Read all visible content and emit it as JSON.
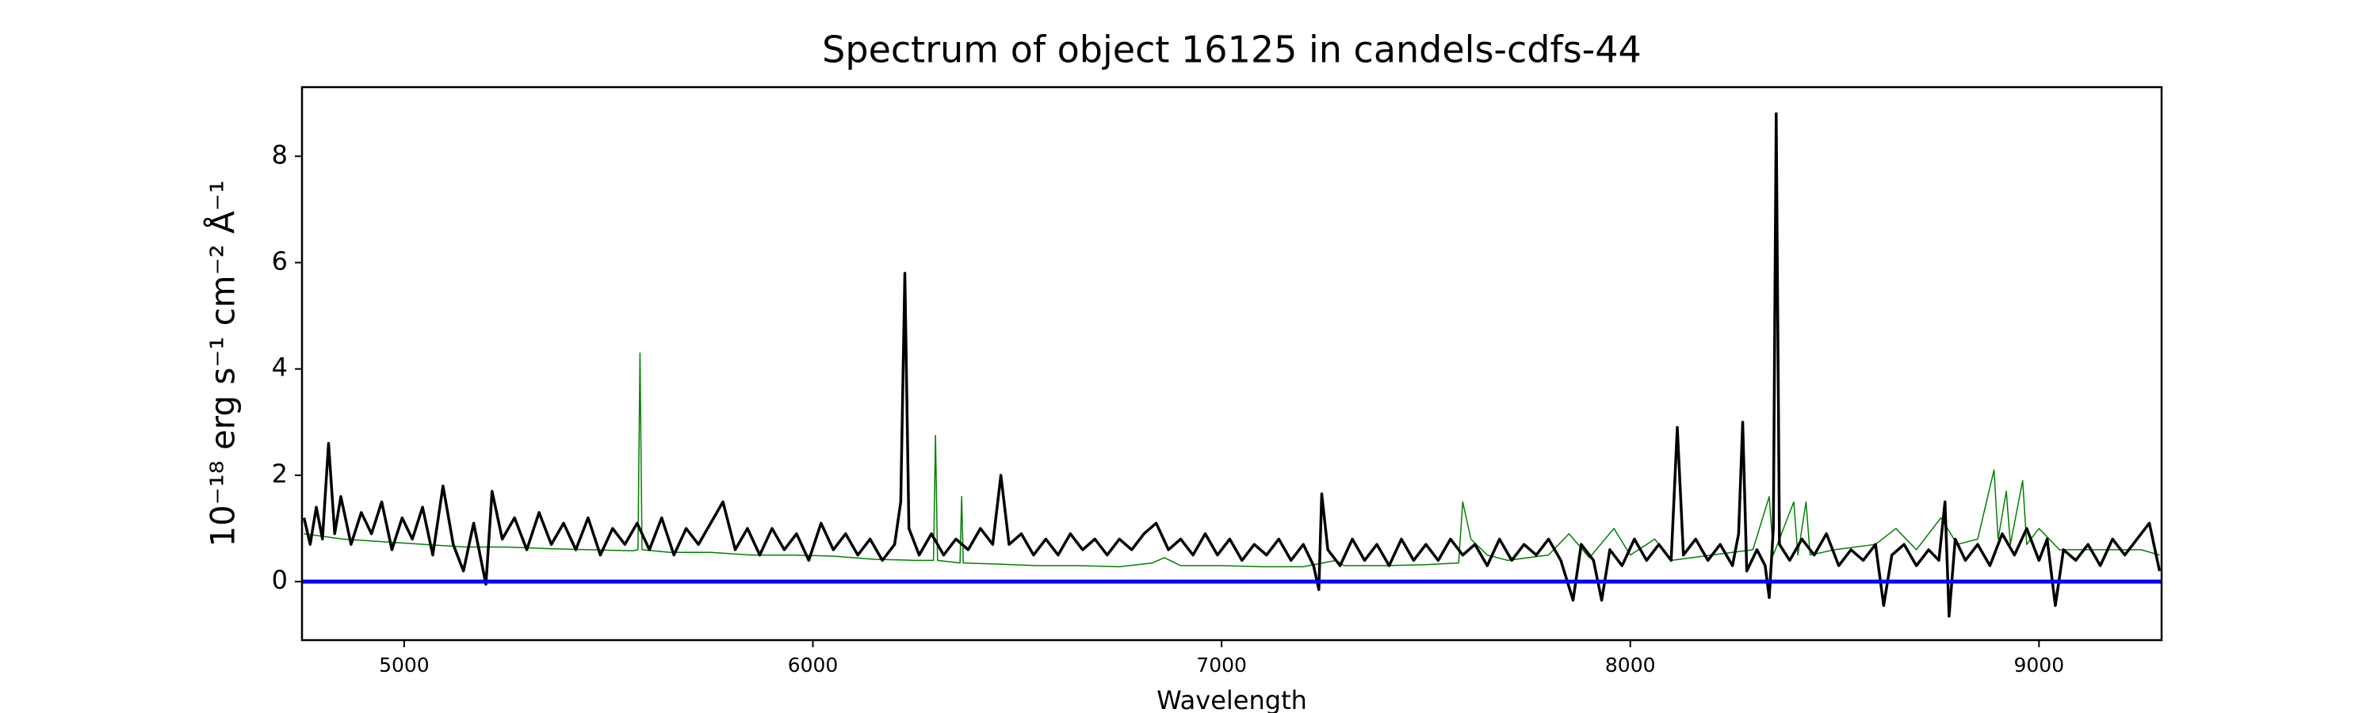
{
  "chart_data": {
    "type": "line",
    "title": "Spectrum of object 16125 in candels-cdfs-44",
    "xlabel": "Wavelength",
    "ylabel": "10⁻¹⁸ erg s⁻¹ cm⁻² Å⁻¹",
    "xlim": [
      4750,
      9300
    ],
    "ylim": [
      -1.1,
      9.3
    ],
    "xticks": [
      5000,
      6000,
      7000,
      8000,
      9000
    ],
    "yticks": [
      0,
      2,
      4,
      6,
      8
    ],
    "grid": false,
    "series": [
      {
        "color": "#008000",
        "width": 1.5,
        "x": [
          4755,
          4850,
          4950,
          5050,
          5150,
          5250,
          5350,
          5450,
          5560,
          5572,
          5577,
          5582,
          5650,
          5750,
          5850,
          5950,
          6050,
          6150,
          6250,
          6295,
          6300,
          6305,
          6360,
          6364,
          6368,
          6450,
          6550,
          6650,
          6750,
          6830,
          6860,
          6900,
          7000,
          7100,
          7200,
          7280,
          7300,
          7400,
          7500,
          7580,
          7590,
          7610,
          7650,
          7700,
          7800,
          7850,
          7900,
          7960,
          8000,
          8060,
          8100,
          8200,
          8300,
          8340,
          8350,
          8400,
          8410,
          8430,
          8440,
          8500,
          8600,
          8650,
          8700,
          8760,
          8800,
          8850,
          8890,
          8900,
          8920,
          8930,
          8960,
          8970,
          9000,
          9050,
          9150,
          9250,
          9295
        ],
        "values": [
          0.9,
          0.8,
          0.75,
          0.7,
          0.65,
          0.65,
          0.62,
          0.6,
          0.58,
          0.6,
          4.3,
          0.6,
          0.55,
          0.55,
          0.5,
          0.5,
          0.48,
          0.42,
          0.4,
          0.4,
          2.75,
          0.4,
          0.35,
          1.6,
          0.35,
          0.33,
          0.3,
          0.3,
          0.28,
          0.35,
          0.45,
          0.3,
          0.3,
          0.28,
          0.28,
          0.4,
          0.3,
          0.3,
          0.32,
          0.35,
          1.5,
          0.8,
          0.5,
          0.4,
          0.5,
          0.9,
          0.45,
          1.0,
          0.5,
          0.8,
          0.4,
          0.5,
          0.6,
          1.6,
          0.5,
          1.5,
          0.5,
          1.5,
          0.5,
          0.6,
          0.7,
          1.0,
          0.6,
          1.2,
          0.7,
          0.8,
          2.1,
          0.8,
          1.7,
          0.7,
          1.9,
          0.7,
          1.0,
          0.6,
          0.6,
          0.6,
          0.5
        ]
      },
      {
        "color": "#000000",
        "width": 3.5,
        "x": [
          4755,
          4770,
          4785,
          4800,
          4815,
          4830,
          4845,
          4870,
          4895,
          4920,
          4945,
          4970,
          4995,
          5020,
          5045,
          5070,
          5095,
          5120,
          5145,
          5170,
          5200,
          5215,
          5240,
          5270,
          5300,
          5330,
          5360,
          5390,
          5420,
          5450,
          5480,
          5510,
          5540,
          5570,
          5600,
          5630,
          5660,
          5690,
          5720,
          5750,
          5780,
          5810,
          5840,
          5870,
          5900,
          5930,
          5960,
          5990,
          6020,
          6050,
          6080,
          6110,
          6140,
          6170,
          6200,
          6215,
          6225,
          6235,
          6260,
          6290,
          6320,
          6350,
          6380,
          6410,
          6440,
          6460,
          6480,
          6510,
          6540,
          6570,
          6600,
          6630,
          6660,
          6690,
          6720,
          6750,
          6780,
          6810,
          6840,
          6870,
          6900,
          6930,
          6960,
          6990,
          7020,
          7050,
          7080,
          7110,
          7140,
          7170,
          7200,
          7225,
          7238,
          7245,
          7260,
          7290,
          7320,
          7350,
          7380,
          7410,
          7440,
          7470,
          7500,
          7530,
          7560,
          7590,
          7620,
          7650,
          7680,
          7710,
          7740,
          7770,
          7800,
          7830,
          7860,
          7880,
          7910,
          7930,
          7950,
          7980,
          8010,
          8040,
          8070,
          8100,
          8115,
          8130,
          8160,
          8190,
          8220,
          8250,
          8265,
          8275,
          8285,
          8310,
          8330,
          8340,
          8350,
          8357,
          8365,
          8390,
          8420,
          8450,
          8480,
          8510,
          8540,
          8570,
          8600,
          8620,
          8640,
          8670,
          8700,
          8730,
          8755,
          8770,
          8780,
          8795,
          8820,
          8850,
          8880,
          8910,
          8940,
          8970,
          9000,
          9020,
          9040,
          9060,
          9090,
          9120,
          9150,
          9180,
          9210,
          9240,
          9270,
          9295
        ],
        "values": [
          1.2,
          0.7,
          1.4,
          0.8,
          2.6,
          0.9,
          1.6,
          0.7,
          1.3,
          0.9,
          1.5,
          0.6,
          1.2,
          0.8,
          1.4,
          0.5,
          1.8,
          0.7,
          0.2,
          1.1,
          -0.05,
          1.7,
          0.8,
          1.2,
          0.6,
          1.3,
          0.7,
          1.1,
          0.6,
          1.2,
          0.5,
          1.0,
          0.7,
          1.1,
          0.6,
          1.2,
          0.5,
          1.0,
          0.7,
          1.1,
          1.5,
          0.6,
          1.0,
          0.5,
          1.0,
          0.6,
          0.9,
          0.4,
          1.1,
          0.6,
          0.9,
          0.5,
          0.8,
          0.4,
          0.7,
          1.5,
          5.8,
          1.0,
          0.5,
          0.9,
          0.5,
          0.8,
          0.6,
          1.0,
          0.7,
          2.0,
          0.7,
          0.9,
          0.5,
          0.8,
          0.5,
          0.9,
          0.6,
          0.8,
          0.5,
          0.8,
          0.6,
          0.9,
          1.1,
          0.6,
          0.8,
          0.5,
          0.9,
          0.5,
          0.8,
          0.4,
          0.7,
          0.5,
          0.8,
          0.4,
          0.7,
          0.3,
          -0.15,
          1.65,
          0.6,
          0.3,
          0.8,
          0.4,
          0.7,
          0.3,
          0.8,
          0.4,
          0.7,
          0.4,
          0.8,
          0.5,
          0.7,
          0.3,
          0.8,
          0.4,
          0.7,
          0.5,
          0.8,
          0.4,
          -0.35,
          0.7,
          0.4,
          -0.35,
          0.6,
          0.3,
          0.8,
          0.4,
          0.7,
          0.4,
          2.9,
          0.5,
          0.8,
          0.4,
          0.7,
          0.3,
          0.9,
          3.0,
          0.2,
          0.6,
          0.3,
          -0.3,
          1.0,
          8.8,
          0.7,
          0.4,
          0.8,
          0.5,
          0.9,
          0.3,
          0.6,
          0.4,
          0.7,
          -0.45,
          0.5,
          0.7,
          0.3,
          0.6,
          0.4,
          1.5,
          -0.65,
          0.8,
          0.4,
          0.7,
          0.3,
          0.9,
          0.5,
          1.0,
          0.4,
          0.8,
          -0.45,
          0.6,
          0.4,
          0.7,
          0.3,
          0.8,
          0.5,
          0.8,
          1.1,
          0.2
        ]
      },
      {
        "color": "#0000ff",
        "width": 5,
        "x": [
          4750,
          9300
        ],
        "values": [
          0,
          0
        ]
      }
    ]
  }
}
